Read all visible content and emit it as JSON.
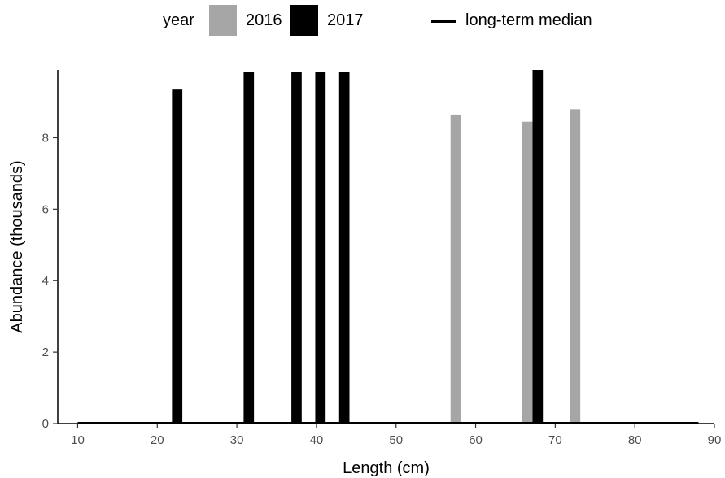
{
  "legend": {
    "title": "year",
    "items": [
      {
        "label": "2016",
        "color": "#a6a6a6"
      },
      {
        "label": "2017",
        "color": "#000000"
      }
    ],
    "median_label": "long-term median",
    "median_color": "#000000"
  },
  "chart_data": {
    "type": "bar",
    "xlabel": "Length (cm)",
    "ylabel": "Abundance (thousands)",
    "xlim": [
      7.5,
      90
    ],
    "ylim": [
      0,
      9.9
    ],
    "xticks": [
      10,
      20,
      30,
      40,
      50,
      60,
      70,
      80,
      90
    ],
    "yticks": [
      0,
      2,
      4,
      6,
      8
    ],
    "bar_width": 1.3,
    "grid": false,
    "legend_position": "top",
    "series": [
      {
        "name": "2016",
        "color": "#a6a6a6",
        "x": [
          57.5,
          66.5,
          72.5
        ],
        "values": [
          8.65,
          8.45,
          8.8
        ]
      },
      {
        "name": "2017",
        "color": "#000000",
        "x": [
          22.5,
          31.5,
          37.5,
          40.5,
          43.5,
          67.8
        ],
        "values": [
          9.35,
          9.85,
          9.85,
          9.85,
          9.85,
          9.9
        ]
      }
    ],
    "median_line": {
      "x": [
        10,
        88
      ],
      "value": 0
    }
  }
}
